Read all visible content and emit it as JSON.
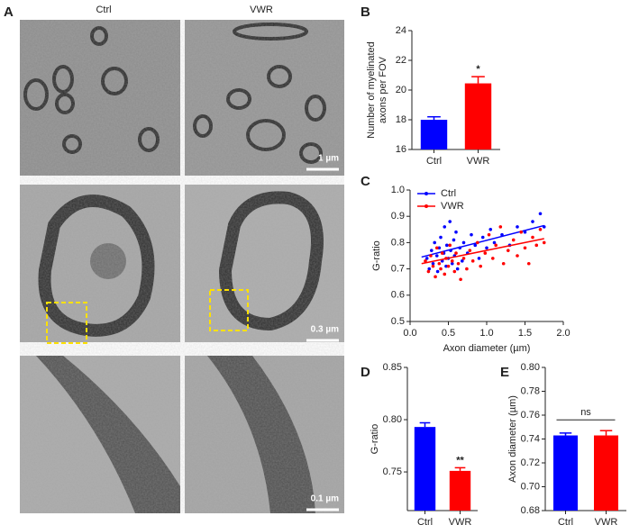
{
  "figure": {
    "panel_labels": [
      "A",
      "B",
      "C",
      "D",
      "E"
    ],
    "image_columns": [
      "Ctrl",
      "VWR"
    ],
    "scale_bars": [
      "1 µm",
      "0.3 µm",
      "0.1 µm"
    ]
  },
  "chart_data": [
    {
      "type": "bar",
      "ylabel": [
        "Number of myelinated",
        "axons per FOV"
      ],
      "categories": [
        "Ctrl",
        "VWR"
      ],
      "values": [
        18.0,
        20.45
      ],
      "errors": [
        0.2,
        0.45
      ],
      "colors": [
        "#0000ff",
        "#ff0000"
      ],
      "ylim": [
        16,
        24
      ],
      "yticks": [
        16,
        18,
        20,
        22,
        24
      ],
      "annotations": [
        {
          "text": "*",
          "at": "VWR"
        }
      ]
    },
    {
      "type": "scatter",
      "xlabel": "Axon diameter (µm)",
      "ylabel": "G-ratio",
      "xlim": [
        0,
        2
      ],
      "ylim": [
        0.5,
        1
      ],
      "legend": "upper left",
      "xticks": [
        {
          "value": 0,
          "label": "0.0"
        },
        0.5,
        {
          "value": 1,
          "label": "1.0"
        },
        1.5,
        {
          "value": 2,
          "label": "2.0"
        }
      ],
      "yticks": [
        0.5,
        0.6,
        0.7,
        0.8,
        0.9,
        {
          "value": 1,
          "label": "1.0"
        }
      ],
      "series": [
        {
          "name": "Ctrl",
          "color": "#0000ff",
          "x": [
            0.22,
            0.25,
            0.28,
            0.3,
            0.32,
            0.35,
            0.36,
            0.38,
            0.4,
            0.42,
            0.44,
            0.45,
            0.47,
            0.48,
            0.5,
            0.52,
            0.53,
            0.55,
            0.57,
            0.58,
            0.6,
            0.62,
            0.65,
            0.68,
            0.7,
            0.75,
            0.8,
            0.85,
            0.9,
            0.95,
            1.0,
            1.05,
            1.1,
            1.2,
            1.3,
            1.4,
            1.5,
            1.6,
            1.7,
            1.75
          ],
          "y": [
            0.74,
            0.7,
            0.77,
            0.72,
            0.8,
            0.75,
            0.69,
            0.78,
            0.82,
            0.73,
            0.76,
            0.86,
            0.71,
            0.79,
            0.74,
            0.88,
            0.77,
            0.72,
            0.81,
            0.75,
            0.84,
            0.7,
            0.78,
            0.73,
            0.8,
            0.76,
            0.83,
            0.79,
            0.74,
            0.82,
            0.78,
            0.85,
            0.8,
            0.83,
            0.79,
            0.86,
            0.84,
            0.88,
            0.91,
            0.86
          ],
          "fit": {
            "x": [
              0.15,
              1.75
            ],
            "y": [
              0.745,
              0.865
            ]
          }
        },
        {
          "name": "VWR",
          "color": "#ff0000",
          "x": [
            0.2,
            0.24,
            0.27,
            0.3,
            0.33,
            0.35,
            0.38,
            0.4,
            0.42,
            0.45,
            0.47,
            0.5,
            0.52,
            0.55,
            0.58,
            0.6,
            0.63,
            0.66,
            0.7,
            0.74,
            0.78,
            0.82,
            0.88,
            0.92,
            0.98,
            1.03,
            1.08,
            1.12,
            1.18,
            1.22,
            1.28,
            1.35,
            1.4,
            1.45,
            1.5,
            1.55,
            1.6,
            1.65,
            1.7,
            1.75
          ],
          "y": [
            0.73,
            0.69,
            0.75,
            0.71,
            0.67,
            0.78,
            0.72,
            0.7,
            0.76,
            0.68,
            0.74,
            0.71,
            0.79,
            0.73,
            0.69,
            0.76,
            0.72,
            0.66,
            0.74,
            0.7,
            0.77,
            0.73,
            0.8,
            0.71,
            0.76,
            0.83,
            0.74,
            0.79,
            0.86,
            0.72,
            0.77,
            0.81,
            0.75,
            0.84,
            0.78,
            0.72,
            0.82,
            0.79,
            0.85,
            0.8
          ],
          "fit": {
            "x": [
              0.15,
              1.75
            ],
            "y": [
              0.72,
              0.815
            ]
          }
        }
      ]
    },
    {
      "type": "bar",
      "ylabel": [
        "G-ratio"
      ],
      "categories": [
        "Ctrl",
        "VWR"
      ],
      "values": [
        0.793,
        0.751
      ],
      "errors": [
        0.004,
        0.003
      ],
      "colors": [
        "#0000ff",
        "#ff0000"
      ],
      "ylim": [
        0.713,
        0.85
      ],
      "yticks": [
        0.75,
        {
          "value": 0.8,
          "label": "0.80"
        },
        0.85
      ],
      "annotations": [
        {
          "text": "**",
          "at": "VWR"
        }
      ]
    },
    {
      "type": "bar",
      "ylabel": [
        "Axon diameter (µm)"
      ],
      "categories": [
        "Ctrl",
        "VWR"
      ],
      "values": [
        0.743,
        0.743
      ],
      "errors": [
        0.002,
        0.004
      ],
      "colors": [
        "#0000ff",
        "#ff0000"
      ],
      "ylim": [
        0.68,
        0.8
      ],
      "yticks": [
        0.68,
        {
          "value": 0.7,
          "label": "0.70"
        },
        0.72,
        0.74,
        0.76,
        0.78,
        {
          "value": 0.8,
          "label": "0.80"
        }
      ],
      "annotations": [
        {
          "text": "ns",
          "at": [
            "Ctrl",
            "VWR"
          ]
        }
      ]
    }
  ]
}
